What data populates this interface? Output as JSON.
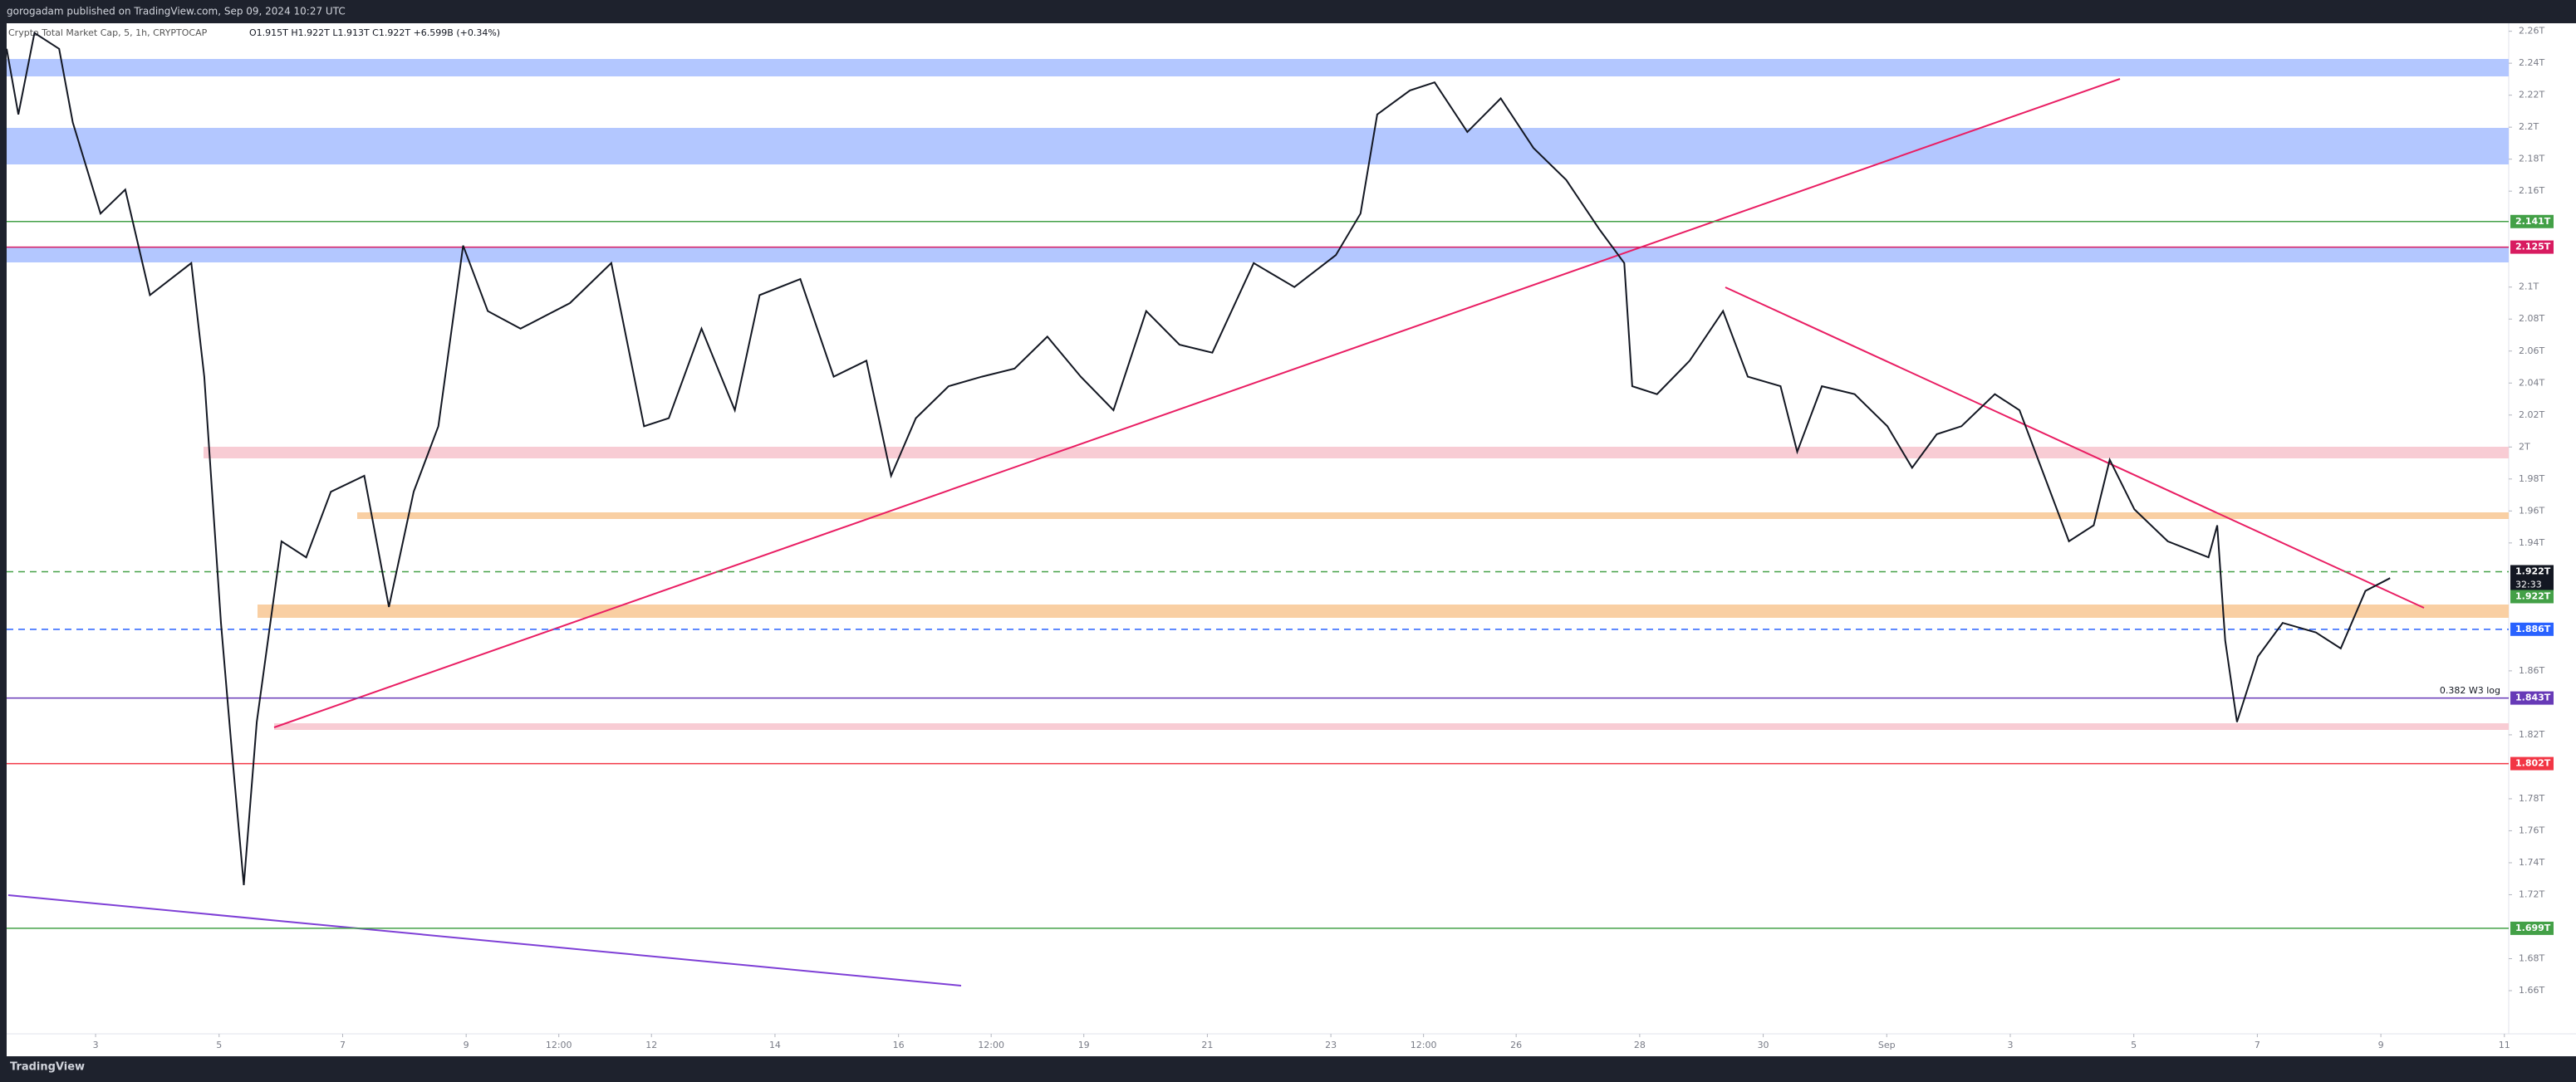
{
  "header": {
    "published": "gorogadam published on TradingView.com, Sep 09, 2024 10:27 UTC",
    "legend": "Crypto Total Market Cap, 5, 1h, CRYPTOCAP",
    "ohlc": "O1.915T H1.922T L1.913T C1.922T +6.599B (+0.34%)"
  },
  "footer": {
    "brand": "TradingView"
  },
  "chart_data": {
    "type": "line",
    "x": [
      1.56,
      1.75,
      2.01,
      2.41,
      2.63,
      3.08,
      3.48,
      3.88,
      4.55,
      4.76,
      5.03,
      5.21,
      5.4,
      5.61,
      6.01,
      6.41,
      6.81,
      7.35,
      7.75,
      8.15,
      8.55,
      8.95,
      9.35,
      9.88,
      10.68,
      11.35,
      11.88,
      12.28,
      12.81,
      13.35,
      13.75,
      14.41,
      14.95,
      15.48,
      15.88,
      16.28,
      16.81,
      17.35,
      17.88,
      18.41,
      18.95,
      19.48,
      20.01,
      20.55,
      21.08,
      21.75,
      22.41,
      23.08,
      23.48,
      23.75,
      24.28,
      24.68,
      25.21,
      25.75,
      26.28,
      26.81,
      27.35,
      27.75,
      27.88,
      28.28,
      28.81,
      29.35,
      29.75,
      30.28,
      30.55,
      30.95,
      31.48,
      32.01,
      32.41,
      32.81,
      33.21,
      33.75,
      34.15,
      34.55,
      34.95,
      35.35,
      35.61,
      36.01,
      36.55,
      37.21,
      37.35,
      37.48,
      37.67,
      38.01,
      38.41,
      38.95,
      39.35,
      39.75,
      40.15
    ],
    "series": [
      {
        "name": "Crypto Total Market Cap",
        "color": "#131722",
        "values": [
          2.249,
          2.208,
          2.259,
          2.249,
          2.203,
          2.146,
          2.161,
          2.095,
          2.115,
          2.044,
          1.89,
          1.808,
          1.726,
          1.828,
          1.941,
          1.931,
          1.972,
          1.982,
          1.9,
          1.972,
          2.013,
          2.126,
          2.085,
          2.074,
          2.09,
          2.115,
          2.013,
          2.018,
          2.074,
          2.023,
          2.095,
          2.105,
          2.044,
          2.054,
          1.982,
          2.018,
          2.038,
          2.044,
          2.049,
          2.069,
          2.044,
          2.023,
          2.085,
          2.064,
          2.059,
          2.115,
          2.1,
          2.12,
          2.146,
          2.208,
          2.223,
          2.228,
          2.197,
          2.218,
          2.187,
          2.167,
          2.136,
          2.115,
          2.038,
          2.033,
          2.054,
          2.085,
          2.044,
          2.038,
          1.997,
          2.038,
          2.033,
          2.013,
          1.987,
          2.008,
          2.013,
          2.033,
          2.023,
          1.982,
          1.941,
          1.951,
          1.992,
          1.961,
          1.941,
          1.931,
          1.951,
          1.879,
          1.828,
          1.869,
          1.89,
          1.884,
          1.874,
          1.91,
          1.918
        ]
      }
    ],
    "xlim": [
      1.56,
      42.07
    ],
    "xticks": [
      3,
      5,
      7,
      9,
      {
        "value": 10.5,
        "label": "12:00"
      },
      12,
      14,
      16,
      {
        "value": 17.5,
        "label": "12:00"
      },
      19,
      21,
      23,
      {
        "value": 24.5,
        "label": "12:00"
      },
      26,
      28,
      30,
      {
        "value": 32,
        "label": "Sep"
      },
      {
        "value": 34,
        "label": "3"
      },
      {
        "value": 36,
        "label": "5"
      },
      {
        "value": 38,
        "label": "7"
      },
      {
        "value": 40,
        "label": "9"
      },
      {
        "value": 42,
        "label": "11"
      }
    ],
    "ylim": [
      1.633,
      2.265
    ],
    "yticks": [
      {
        "value": 2.26,
        "label": "2.26T"
      },
      {
        "value": 2.24,
        "label": "2.24T"
      },
      {
        "value": 2.22,
        "label": "2.22T"
      },
      {
        "value": 2.2,
        "label": "2.2T"
      },
      {
        "value": 2.18,
        "label": "2.18T"
      },
      {
        "value": 2.16,
        "label": "2.16T"
      },
      {
        "value": 2.1,
        "label": "2.1T"
      },
      {
        "value": 2.08,
        "label": "2.08T"
      },
      {
        "value": 2.06,
        "label": "2.06T"
      },
      {
        "value": 2.04,
        "label": "2.04T"
      },
      {
        "value": 2.02,
        "label": "2.02T"
      },
      {
        "value": 2,
        "label": "2T"
      },
      {
        "value": 1.98,
        "label": "1.98T"
      },
      {
        "value": 1.96,
        "label": "1.96T"
      },
      {
        "value": 1.94,
        "label": "1.94T"
      },
      {
        "value": 1.86,
        "label": "1.86T"
      },
      {
        "value": 1.82,
        "label": "1.82T"
      },
      {
        "value": 1.78,
        "label": "1.78T"
      },
      {
        "value": 1.76,
        "label": "1.76T"
      },
      {
        "value": 1.74,
        "label": "1.74T"
      },
      {
        "value": 1.72,
        "label": "1.72T"
      },
      {
        "value": 1.68,
        "label": "1.68T"
      },
      {
        "value": 1.66,
        "label": "1.66T"
      }
    ],
    "levels": [
      {
        "value": 2.141,
        "label": "2.141T",
        "color": "#43a047"
      },
      {
        "value": 2.125,
        "label": "2.125T",
        "color": "#d81b60"
      },
      {
        "value": 1.922,
        "label": "1.922T",
        "color": "#131722"
      },
      {
        "value": 1.922,
        "label": "1.922T",
        "color": "#43a047"
      },
      {
        "value": 1.886,
        "label": "1.886T",
        "color": "#2962ff"
      },
      {
        "value": 1.843,
        "label": "1.843T",
        "color": "#673ab7"
      },
      {
        "value": 1.802,
        "label": "1.802T",
        "color": "#f23645"
      },
      {
        "value": 1.699,
        "label": "1.699T",
        "color": "#43a047"
      }
    ],
    "countdown": "32:33",
    "annotation": "0.382 W3 log"
  }
}
